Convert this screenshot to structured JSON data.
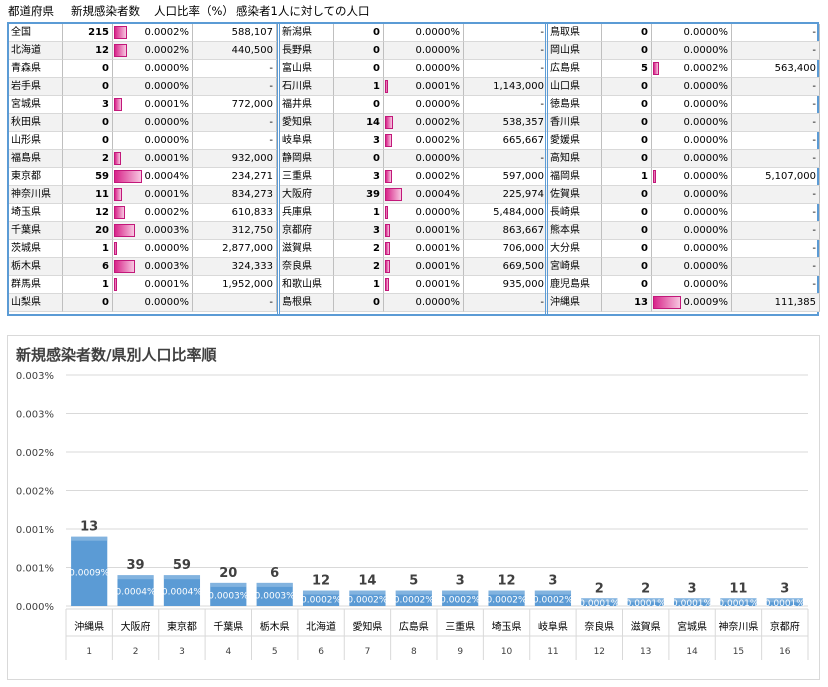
{
  "table": {
    "headers": [
      "都道府県",
      "新規感染者数",
      "人口比率（%）",
      "感染者1人に対しての人口"
    ],
    "blocks": [
      [
        [
          "全国",
          "215",
          "0.0002%",
          "588,107",
          0.45
        ],
        [
          "北海道",
          "12",
          "0.0002%",
          "440,500",
          0.45
        ],
        [
          "青森県",
          "0",
          "0.0000%",
          "-",
          0
        ],
        [
          "岩手県",
          "0",
          "0.0000%",
          "-",
          0
        ],
        [
          "宮城県",
          "3",
          "0.0001%",
          "772,000",
          0.3
        ],
        [
          "秋田県",
          "0",
          "0.0000%",
          "-",
          0
        ],
        [
          "山形県",
          "0",
          "0.0000%",
          "-",
          0
        ],
        [
          "福島県",
          "2",
          "0.0001%",
          "932,000",
          0.25
        ],
        [
          "東京都",
          "59",
          "0.0004%",
          "234,271",
          1.0
        ],
        [
          "神奈川県",
          "11",
          "0.0001%",
          "834,273",
          0.28
        ],
        [
          "埼玉県",
          "12",
          "0.0002%",
          "610,833",
          0.4
        ],
        [
          "千葉県",
          "20",
          "0.0003%",
          "312,750",
          0.75
        ],
        [
          "茨城県",
          "1",
          "0.0000%",
          "2,877,000",
          0.1
        ],
        [
          "栃木県",
          "6",
          "0.0003%",
          "324,333",
          0.75
        ],
        [
          "群馬県",
          "1",
          "0.0001%",
          "1,952,000",
          0.12
        ],
        [
          "山梨県",
          "0",
          "0.0000%",
          "-",
          0
        ]
      ],
      [
        [
          "新潟県",
          "0",
          "0.0000%",
          "-",
          0
        ],
        [
          "長野県",
          "0",
          "0.0000%",
          "-",
          0
        ],
        [
          "富山県",
          "0",
          "0.0000%",
          "-",
          0
        ],
        [
          "石川県",
          "1",
          "0.0001%",
          "1,143,000",
          0.08
        ],
        [
          "福井県",
          "0",
          "0.0000%",
          "-",
          0
        ],
        [
          "愛知県",
          "14",
          "0.0002%",
          "538,357",
          0.28
        ],
        [
          "岐阜県",
          "3",
          "0.0002%",
          "665,667",
          0.25
        ],
        [
          "静岡県",
          "0",
          "0.0000%",
          "-",
          0
        ],
        [
          "三重県",
          "3",
          "0.0002%",
          "597,000",
          0.25
        ],
        [
          "大阪府",
          "39",
          "0.0004%",
          "225,974",
          0.62
        ],
        [
          "兵庫県",
          "1",
          "0.0000%",
          "5,484,000",
          0.03
        ],
        [
          "京都府",
          "3",
          "0.0001%",
          "863,667",
          0.18
        ],
        [
          "滋賀県",
          "2",
          "0.0001%",
          "706,000",
          0.18
        ],
        [
          "奈良県",
          "2",
          "0.0001%",
          "669,500",
          0.18
        ],
        [
          "和歌山県",
          "1",
          "0.0001%",
          "935,000",
          0.14
        ],
        [
          "島根県",
          "0",
          "0.0000%",
          "-",
          0
        ]
      ],
      [
        [
          "鳥取県",
          "0",
          "0.0000%",
          "-",
          0
        ],
        [
          "岡山県",
          "0",
          "0.0000%",
          "-",
          0
        ],
        [
          "広島県",
          "5",
          "0.0002%",
          "563,400",
          0.2
        ],
        [
          "山口県",
          "0",
          "0.0000%",
          "-",
          0
        ],
        [
          "徳島県",
          "0",
          "0.0000%",
          "-",
          0
        ],
        [
          "香川県",
          "0",
          "0.0000%",
          "-",
          0
        ],
        [
          "愛媛県",
          "0",
          "0.0000%",
          "-",
          0
        ],
        [
          "高知県",
          "0",
          "0.0000%",
          "-",
          0
        ],
        [
          "福岡県",
          "1",
          "0.0000%",
          "5,107,000",
          0.03
        ],
        [
          "佐賀県",
          "0",
          "0.0000%",
          "-",
          0
        ],
        [
          "長崎県",
          "0",
          "0.0000%",
          "-",
          0
        ],
        [
          "熊本県",
          "0",
          "0.0000%",
          "-",
          0
        ],
        [
          "大分県",
          "0",
          "0.0000%",
          "-",
          0
        ],
        [
          "宮崎県",
          "0",
          "0.0000%",
          "-",
          0
        ],
        [
          "鹿児島県",
          "0",
          "0.0000%",
          "-",
          0
        ],
        [
          "沖縄県",
          "13",
          "0.0009%",
          "111,385",
          1.0
        ]
      ]
    ]
  },
  "chart_data": {
    "type": "bar",
    "title": "新規感染者数/県別人口比率順",
    "categories": [
      "沖縄県",
      "大阪府",
      "東京都",
      "千葉県",
      "栃木県",
      "北海道",
      "愛知県",
      "広島県",
      "三重県",
      "埼玉県",
      "岐阜県",
      "奈良県",
      "滋賀県",
      "宮城県",
      "神奈川県",
      "京都府"
    ],
    "ranks": [
      "1",
      "2",
      "3",
      "4",
      "5",
      "6",
      "7",
      "8",
      "9",
      "10",
      "11",
      "12",
      "13",
      "14",
      "15",
      "16"
    ],
    "values": [
      0.0009,
      0.0004,
      0.0004,
      0.0003,
      0.0003,
      0.0002,
      0.0002,
      0.0002,
      0.0002,
      0.0002,
      0.0002,
      0.0001,
      0.0001,
      0.0001,
      0.0001,
      0.0001
    ],
    "value_labels": [
      "0.0009%",
      "0.0004%",
      "0.0004%",
      "0.0003%",
      "0.0003%",
      "0.0002%",
      "0.0002%",
      "0.0002%",
      "0.0002%",
      "0.0002%",
      "0.0002%",
      "0.0001%",
      "0.0001%",
      "0.0001%",
      "0.0001%",
      "0.0001%"
    ],
    "case_labels": [
      "13",
      "39",
      "59",
      "20",
      "6",
      "12",
      "14",
      "5",
      "3",
      "12",
      "3",
      "2",
      "2",
      "3",
      "11",
      "3"
    ],
    "y_tick_labels": [
      "0.000%",
      "0.001%",
      "0.001%",
      "0.002%",
      "0.002%",
      "0.003%",
      "0.003%"
    ],
    "ylim": [
      0,
      0.003
    ],
    "grid": true,
    "bar_color": "#5b9bd5"
  }
}
